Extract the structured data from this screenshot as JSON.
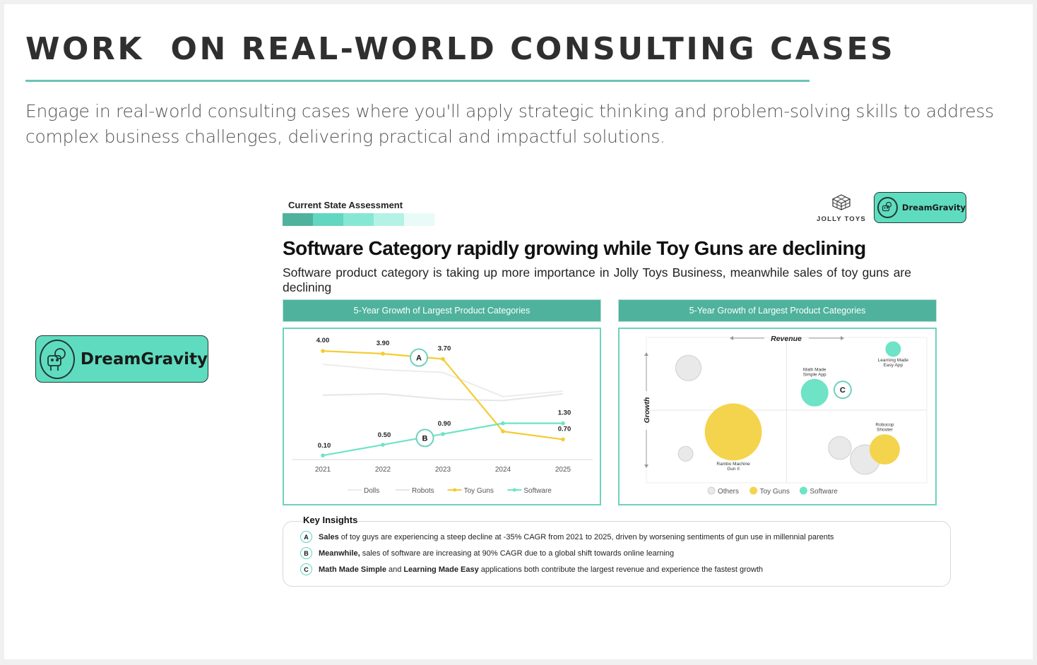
{
  "header": {
    "title": "WORK  ON REAL-WORLD CONSULTING CASES",
    "intro": "Engage in real-world consulting cases where you'll apply strategic thinking and problem-solving skills to address complex business challenges, delivering practical and impactful solutions."
  },
  "brand": {
    "name": "DreamGravity",
    "color": "#5fdcbf"
  },
  "slide": {
    "section_label": "Current State Assessment",
    "progress_colors": [
      "#4fb29d",
      "#62d6c0",
      "#86e8d4",
      "#b4f2e5",
      "#e8fbf7"
    ],
    "client_logo": "JOLLY TOYS",
    "title": "Software Category rapidly growing while Toy Guns are declining",
    "subtitle": "Software product category is taking up more importance in Jolly Toys Business, meanwhile sales of toy guns are declining",
    "left_panel_title": "5-Year Growth of Largest Product Categories",
    "right_panel_title": "5-Year Growth of Largest Product Categories",
    "insights_title": "Key Insights",
    "insights": [
      {
        "badge": "A",
        "bold": "Sales",
        "text": "of toy guys are experiencing a steep decline at -35% CAGR from 2021 to 2025, driven by worsening sentiments of gun use in millennial parents",
        "tail_bold": "",
        "tail": ""
      },
      {
        "badge": "B",
        "bold": "Meanwhile,",
        "text": "sales of software are increasing at 90% CAGR due to a global shift towards online learning",
        "tail_bold": "",
        "tail": ""
      },
      {
        "badge": "C",
        "bold": "Math Made Simple",
        "text": "and",
        "tail_bold": "Learning Made Easy",
        "tail": "applications both contribute the largest revenue and experience the fastest growth"
      }
    ]
  },
  "chart_data": [
    {
      "type": "line",
      "x": [
        "2021",
        "2022",
        "2023",
        "2024",
        "2025"
      ],
      "series": [
        {
          "name": "Dolls",
          "values": [
            3.5,
            3.3,
            3.2,
            2.3,
            2.5
          ],
          "color": "#ececec"
        },
        {
          "name": "Robots",
          "values": [
            2.35,
            2.4,
            2.2,
            2.15,
            2.4
          ],
          "color": "#e6e6e6"
        },
        {
          "name": "Toy Guns",
          "values": [
            4.0,
            3.9,
            3.7,
            1.0,
            0.7
          ],
          "color": "#f4cc2f"
        },
        {
          "name": "Software",
          "values": [
            0.1,
            0.5,
            0.9,
            1.3,
            1.3
          ],
          "color": "#6ee3c6"
        }
      ],
      "data_labels": [
        {
          "series": "Toy Guns",
          "x": "2021",
          "text": "4.00"
        },
        {
          "series": "Toy Guns",
          "x": "2022",
          "text": "3.90"
        },
        {
          "series": "Toy Guns",
          "x": "2023",
          "text": "3.70"
        },
        {
          "series": "Toy Guns",
          "x": "2025",
          "text": "0.70"
        },
        {
          "series": "Software",
          "x": "2021",
          "text": "0.10"
        },
        {
          "series": "Software",
          "x": "2022",
          "text": "0.50"
        },
        {
          "series": "Software",
          "x": "2023",
          "text": "0.90"
        },
        {
          "series": "Software",
          "x": "2025",
          "text": "1.30"
        }
      ],
      "callouts": [
        {
          "label": "A",
          "series": "Toy Guns",
          "x": "2022.6"
        },
        {
          "label": "B",
          "series": "Software",
          "x": "2022.7"
        }
      ],
      "ylim": [
        0,
        4.4
      ],
      "legend": "bottom"
    },
    {
      "type": "scatter",
      "xlabel": "Revenue",
      "ylabel": "Growth",
      "xlim": [
        0,
        10
      ],
      "ylim": [
        0,
        10
      ],
      "legend": "bottom",
      "categories": [
        {
          "name": "Others",
          "color": "#e9e9e9"
        },
        {
          "name": "Toy Guns",
          "color": "#f4d44d"
        },
        {
          "name": "Software",
          "color": "#6ee3c6"
        }
      ],
      "points": [
        {
          "category": "Others",
          "x": 1.5,
          "y": 7.9,
          "size": 1.9,
          "label": ""
        },
        {
          "category": "Others",
          "x": 1.4,
          "y": 2.0,
          "size": 1.1,
          "label": ""
        },
        {
          "category": "Toy Guns",
          "x": 3.1,
          "y": 3.5,
          "size": 4.2,
          "label": "Rambo Machine Gun II"
        },
        {
          "category": "Software",
          "x": 6.0,
          "y": 6.2,
          "size": 2.0,
          "label": "Math Made Simple App"
        },
        {
          "category": "Software",
          "x": 8.8,
          "y": 9.2,
          "size": 1.1,
          "label": "Learning Made Easy App"
        },
        {
          "category": "Others",
          "x": 6.9,
          "y": 2.4,
          "size": 1.7,
          "label": ""
        },
        {
          "category": "Others",
          "x": 7.8,
          "y": 1.6,
          "size": 2.2,
          "label": ""
        },
        {
          "category": "Toy Guns",
          "x": 8.5,
          "y": 2.3,
          "size": 2.2,
          "label": "Robocop Shooter"
        }
      ],
      "callouts": [
        {
          "label": "C",
          "x": 7.0,
          "y": 6.4
        }
      ]
    }
  ]
}
